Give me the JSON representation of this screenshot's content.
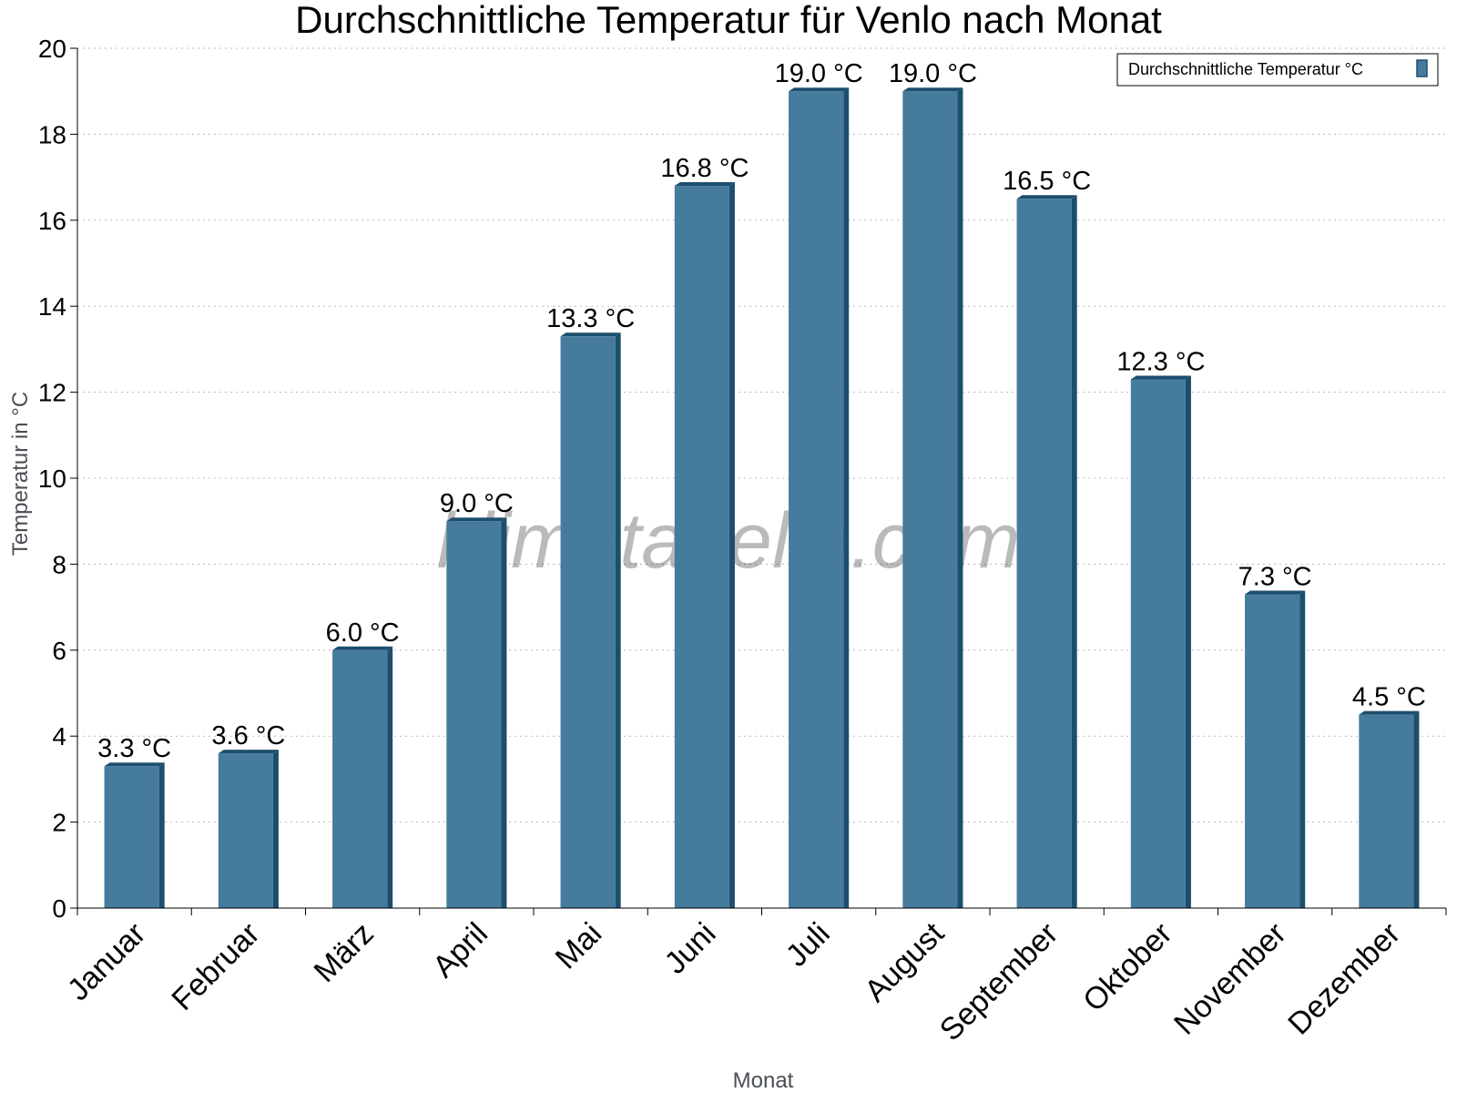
{
  "chart_data": {
    "type": "bar",
    "title": "Durchschnittliche Temperatur für Venlo nach Monat",
    "xlabel": "Monat",
    "ylabel": "Temperatur in °C",
    "categories": [
      "Januar",
      "Februar",
      "März",
      "April",
      "Mai",
      "Juni",
      "Juli",
      "August",
      "September",
      "Oktober",
      "November",
      "Dezember"
    ],
    "series": [
      {
        "name": "Durchschnittliche Temperatur °C",
        "values": [
          3.3,
          3.6,
          6.0,
          9.0,
          13.3,
          16.8,
          19.0,
          19.0,
          16.5,
          12.3,
          7.3,
          4.5
        ],
        "labels": [
          "3.3 °C",
          "3.6 °C",
          "6.0 °C",
          "9.0 °C",
          "13.3 °C",
          "16.8 °C",
          "19.0 °C",
          "19.0 °C",
          "16.5 °C",
          "12.3 °C",
          "7.3 °C",
          "4.5 °C"
        ],
        "color": "#457b9d",
        "edge_color": "#1d4e6e"
      }
    ],
    "ylim": [
      0,
      20
    ],
    "yticks": [
      0,
      2,
      4,
      6,
      8,
      10,
      12,
      14,
      16,
      18,
      20
    ],
    "grid": true,
    "legend_position": "top-right",
    "watermark": "klimatabelle.com"
  }
}
